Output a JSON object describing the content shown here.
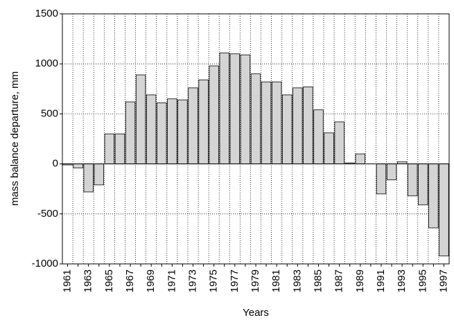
{
  "chart_data": {
    "type": "bar",
    "x_label": "Years",
    "y_label": "mass balance departure, mm",
    "categories": [
      "1961",
      null,
      "1963",
      null,
      "1965",
      null,
      "1967",
      null,
      "1969",
      null,
      "1971",
      null,
      "1973",
      null,
      "1975",
      null,
      "1977",
      null,
      "1979",
      null,
      "1981",
      null,
      "1983",
      null,
      "1985",
      null,
      "1987",
      null,
      "1989",
      null,
      "1991",
      null,
      "1993",
      null,
      "1995",
      null,
      "1997"
    ],
    "values": [
      -10,
      -40,
      -280,
      -210,
      300,
      300,
      620,
      890,
      690,
      610,
      650,
      640,
      760,
      840,
      980,
      1110,
      1100,
      1090,
      900,
      820,
      820,
      690,
      760,
      770,
      540,
      310,
      420,
      10,
      100,
      0,
      -300,
      -160,
      20,
      -320,
      -410,
      -640,
      -920
    ],
    "color": "#d4d4d4",
    "ylim": [
      -1000,
      1500
    ],
    "yticks": [
      -1000,
      -500,
      0,
      500,
      1000,
      1500
    ],
    "grid": true
  }
}
